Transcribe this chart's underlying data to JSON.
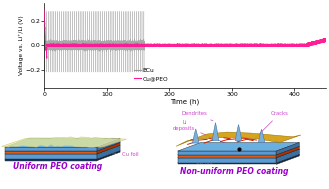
{
  "ylabel": "Voltage vs. Li⁺/Li (V)",
  "xlabel": "Time (h)",
  "ylim": [
    -0.35,
    0.35
  ],
  "xlim": [
    0,
    450
  ],
  "yticks": [
    -0.2,
    0.0,
    0.2
  ],
  "xticks": [
    0,
    100,
    200,
    300,
    400
  ],
  "bcu_color": "#999999",
  "peo_color": "#ff1493",
  "legend_bcu": "BCu",
  "legend_peo": "Cu@PEO",
  "label_uniform": "Uniform PEO coating",
  "label_nonuniform": "Non-uniform PEO coating",
  "annotation_dendrites": "Dendrites",
  "annotation_cracks": "Cracks",
  "annotation_li": "Li\ndeposits",
  "annotation_cu": "Cu foil",
  "bg_color": "#ffffff",
  "annotation_color": "#cc44cc",
  "label_color": "#9900cc",
  "blue_layer": "#5b9bd5",
  "blue_layer_dark": "#3a70a0",
  "blue_layer2": "#6aafdf",
  "orange_layer": "#e05a10",
  "orange_dark": "#b03000",
  "peo_film_color": "#e8e8b0",
  "peo_film_edge": "#c8c880",
  "golden_color": "#d4a010",
  "golden_edge": "#a07000",
  "crack_color": "#cc2200",
  "dendrite_color": "#7ab0d8",
  "dendrite_edge": "#4477aa",
  "dark_blue_stripe": "#1a3a5a"
}
